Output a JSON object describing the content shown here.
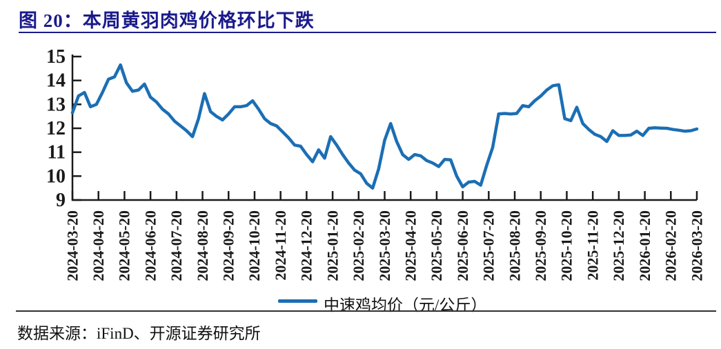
{
  "header": {
    "title": "图 20：本周黄羽肉鸡价格环比下跌"
  },
  "legend": {
    "label": "中速鸡均价（元/公斤）"
  },
  "footer": {
    "source": "数据来源：iFinD、开源证券研究所"
  },
  "colors": {
    "line": "#1b6eb4",
    "title": "#1a1a8c",
    "axis": "#1a1a1a",
    "rule": "#2f2f2f"
  },
  "chart_data": {
    "type": "line",
    "title": "本周黄羽肉鸡价格环比下跌",
    "xlabel": "",
    "ylabel": "",
    "ylim": [
      9,
      15
    ],
    "y_ticks": [
      9,
      10,
      11,
      12,
      13,
      14,
      15
    ],
    "grid": false,
    "legend_position": "bottom-center",
    "x_description": "weekly observations from 2024-03-20 to 2026-03-20",
    "x_tick_labels": [
      "2024-03-20",
      "2024-04-20",
      "2024-05-20",
      "2024-06-20",
      "2024-07-20",
      "2024-08-20",
      "2024-09-20",
      "2024-10-20",
      "2024-11-20",
      "2024-12-20",
      "2025-01-20",
      "2025-02-20",
      "2025-03-20",
      "2025-04-20",
      "2025-05-20",
      "2025-06-20",
      "2025-07-20",
      "2025-08-20",
      "2025-09-20",
      "2025-10-20",
      "2025-11-20",
      "2025-12-20",
      "2026-01-20",
      "2026-02-20",
      "2026-03-20"
    ],
    "series": [
      {
        "name": "中速鸡均价（元/公斤）",
        "unit": "元/公斤",
        "values": [
          12.65,
          13.35,
          13.5,
          12.9,
          13.0,
          13.5,
          14.05,
          14.15,
          14.65,
          13.9,
          13.55,
          13.6,
          13.85,
          13.3,
          13.1,
          12.8,
          12.6,
          12.3,
          12.1,
          11.9,
          11.65,
          12.4,
          13.45,
          12.7,
          12.5,
          12.35,
          12.6,
          12.9,
          12.9,
          12.95,
          13.15,
          12.8,
          12.4,
          12.2,
          12.1,
          11.85,
          11.6,
          11.3,
          11.25,
          10.9,
          10.6,
          11.1,
          10.75,
          11.65,
          11.3,
          10.9,
          10.55,
          10.25,
          10.1,
          9.7,
          9.5,
          10.3,
          11.5,
          12.2,
          11.45,
          10.9,
          10.7,
          10.9,
          10.85,
          10.65,
          10.55,
          10.4,
          10.7,
          10.68,
          10.0,
          9.55,
          9.75,
          9.78,
          9.62,
          10.45,
          11.2,
          12.6,
          12.62,
          12.6,
          12.62,
          12.95,
          12.9,
          13.15,
          13.35,
          13.6,
          13.78,
          13.82,
          12.4,
          12.32,
          12.88,
          12.2,
          11.95,
          11.75,
          11.65,
          11.45,
          11.9,
          11.7,
          11.7,
          11.72,
          11.88,
          11.7,
          12.0,
          12.02,
          12.01,
          12.0,
          11.95,
          11.92,
          11.88,
          11.9,
          11.97
        ]
      }
    ]
  }
}
